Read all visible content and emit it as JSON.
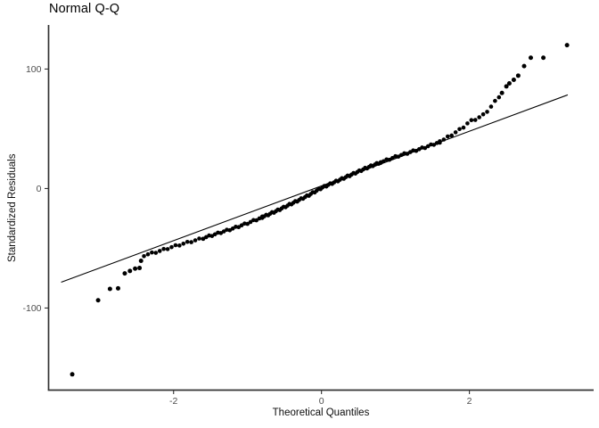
{
  "chart_data": {
    "type": "scatter",
    "title": "Normal Q-Q",
    "xlabel": "Theoretical Quantiles",
    "ylabel": "Standardized Residuals",
    "xlim": [
      -3.69,
      3.68
    ],
    "ylim": [
      -168.7,
      136.9
    ],
    "xticks": [
      -2,
      0,
      2
    ],
    "yticks": [
      -100,
      0,
      100
    ],
    "grid": false,
    "legend": false,
    "background_color": "#ffffff",
    "point_color": "#000000",
    "point_radius": 2.3,
    "axis_color": "#333333",
    "axis_width": 1.7,
    "tick_length": 4.5,
    "tick_label_color": "#4d4d4d",
    "reference_line": {
      "x1": -3.52,
      "y1": -78.4,
      "x2": 3.33,
      "y2": 78.4,
      "color": "#000000",
      "width": 1.1
    },
    "tail_points": [
      [
        -3.37,
        -155.5
      ],
      [
        -3.02,
        -93.5
      ],
      [
        -2.86,
        -84.0
      ],
      [
        -2.75,
        -83.5
      ],
      [
        -2.66,
        -71.0
      ],
      [
        -2.59,
        -69.0
      ],
      [
        -2.52,
        -67.0
      ],
      [
        -2.46,
        -66.5
      ],
      [
        -2.44,
        -60.5
      ],
      [
        2.44,
        80.0
      ],
      [
        2.5,
        85.5
      ],
      [
        2.54,
        88.0
      ],
      [
        2.6,
        91.0
      ],
      [
        2.66,
        94.5
      ],
      [
        2.74,
        102.5
      ],
      [
        2.83,
        109.5
      ],
      [
        3.0,
        109.5
      ],
      [
        3.32,
        120.0
      ]
    ],
    "dense_band": {
      "anchors": [
        [
          -2.4,
          -56.0
        ],
        [
          -2.2,
          -52.5
        ],
        [
          -2.0,
          -48.5
        ],
        [
          -1.8,
          -45.0
        ],
        [
          -1.6,
          -41.5
        ],
        [
          -1.4,
          -37.5
        ],
        [
          -1.2,
          -33.5
        ],
        [
          -1.0,
          -29.0
        ],
        [
          -0.8,
          -24.0
        ],
        [
          -0.6,
          -18.5
        ],
        [
          -0.4,
          -12.5
        ],
        [
          -0.2,
          -6.5
        ],
        [
          0.0,
          0.5
        ],
        [
          0.2,
          6.0
        ],
        [
          0.4,
          11.5
        ],
        [
          0.6,
          17.0
        ],
        [
          0.8,
          22.0
        ],
        [
          1.0,
          26.5
        ],
        [
          1.2,
          30.5
        ],
        [
          1.4,
          34.5
        ],
        [
          1.6,
          39.0
        ],
        [
          1.8,
          46.5
        ],
        [
          1.9,
          50.5
        ],
        [
          2.0,
          56.0
        ],
        [
          2.1,
          58.5
        ],
        [
          2.2,
          62.0
        ],
        [
          2.3,
          69.0
        ],
        [
          2.4,
          77.0
        ]
      ],
      "segments": [
        {
          "from": -2.4,
          "to": -1.6,
          "count": 16
        },
        {
          "from": -1.6,
          "to": -0.8,
          "count": 21
        },
        {
          "from": -0.8,
          "to": 0.8,
          "count": 62
        },
        {
          "from": 0.8,
          "to": 1.6,
          "count": 21
        },
        {
          "from": 1.6,
          "to": 2.4,
          "count": 16
        }
      ]
    }
  }
}
